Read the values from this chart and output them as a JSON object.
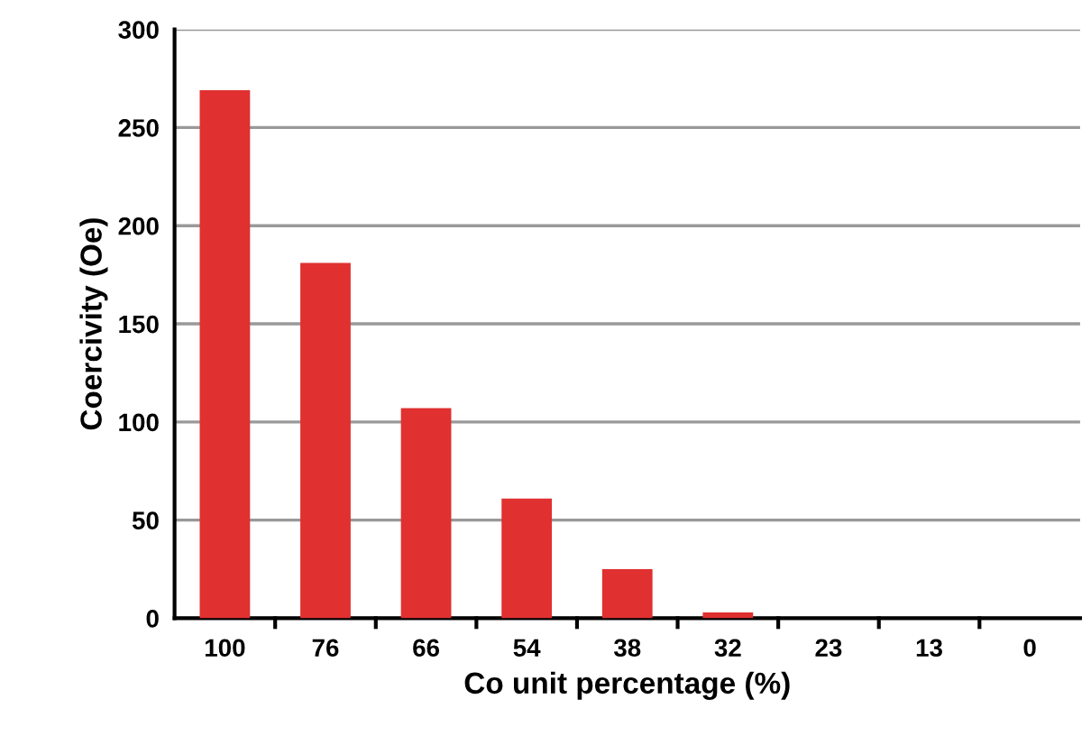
{
  "chart_data": {
    "type": "bar",
    "xlabel": "Co unit percentage (%)",
    "ylabel": "Coercivity (Oe)",
    "categories": [
      "100",
      "76",
      "66",
      "54",
      "38",
      "32",
      "23",
      "13",
      "0"
    ],
    "values": [
      269,
      181,
      107,
      61,
      25,
      3,
      0,
      0,
      0
    ],
    "color": "#e03030",
    "ylim": [
      0,
      300
    ],
    "yticks": [
      0,
      50,
      100,
      150,
      200,
      250,
      300
    ],
    "grid": "y"
  }
}
